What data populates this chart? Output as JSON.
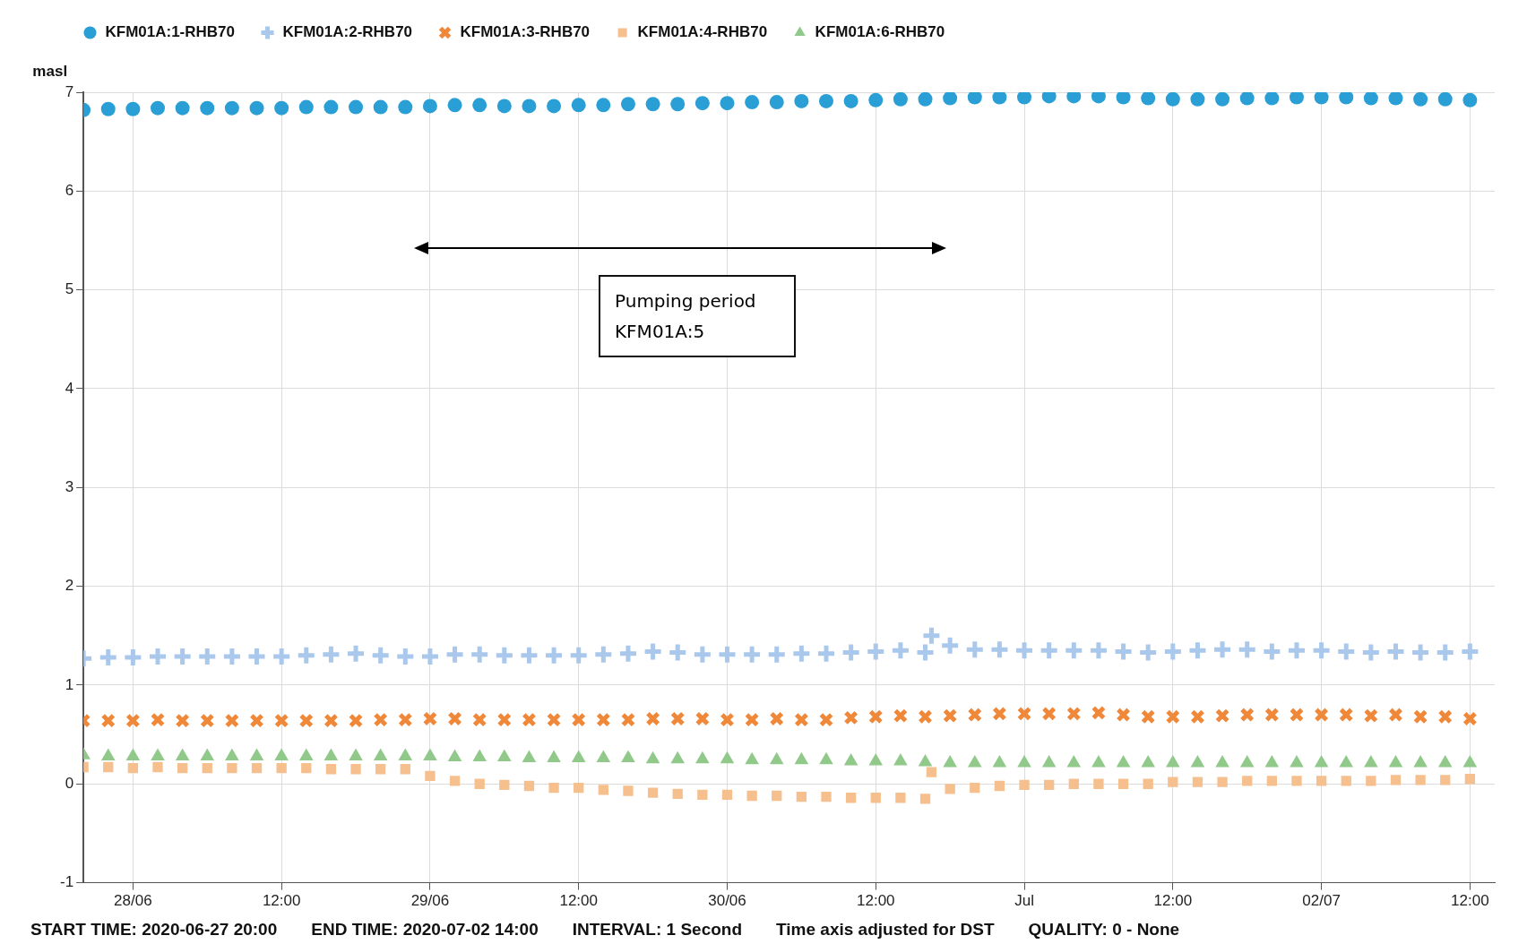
{
  "chart_data": {
    "type": "scatter",
    "ylabel": "masl",
    "x": [
      "2020-06-27T20:00",
      "2020-06-27T22:00",
      "2020-06-28T00:00",
      "2020-06-28T02:00",
      "2020-06-28T04:00",
      "2020-06-28T06:00",
      "2020-06-28T08:00",
      "2020-06-28T10:00",
      "2020-06-28T12:00",
      "2020-06-28T14:00",
      "2020-06-28T16:00",
      "2020-06-28T18:00",
      "2020-06-28T20:00",
      "2020-06-28T22:00",
      "2020-06-29T00:00",
      "2020-06-29T02:00",
      "2020-06-29T04:00",
      "2020-06-29T06:00",
      "2020-06-29T08:00",
      "2020-06-29T10:00",
      "2020-06-29T12:00",
      "2020-06-29T14:00",
      "2020-06-29T16:00",
      "2020-06-29T18:00",
      "2020-06-29T20:00",
      "2020-06-29T22:00",
      "2020-06-30T00:00",
      "2020-06-30T02:00",
      "2020-06-30T04:00",
      "2020-06-30T06:00",
      "2020-06-30T08:00",
      "2020-06-30T10:00",
      "2020-06-30T12:00",
      "2020-06-30T14:00",
      "2020-06-30T16:00",
      "2020-06-30T18:00",
      "2020-06-30T20:00",
      "2020-06-30T22:00",
      "2020-07-01T00:00",
      "2020-07-01T02:00",
      "2020-07-01T04:00",
      "2020-07-01T06:00",
      "2020-07-01T08:00",
      "2020-07-01T10:00",
      "2020-07-01T12:00",
      "2020-07-01T14:00",
      "2020-07-01T16:00",
      "2020-07-01T18:00",
      "2020-07-01T20:00",
      "2020-07-01T22:00",
      "2020-07-02T00:00",
      "2020-07-02T02:00",
      "2020-07-02T04:00",
      "2020-07-02T06:00",
      "2020-07-02T08:00",
      "2020-07-02T10:00",
      "2020-07-02T12:00"
    ],
    "series": [
      {
        "name": "KFM01A:1-RHB70",
        "color": "#2a9fd6",
        "marker": "circle",
        "values": [
          6.82,
          6.83,
          6.83,
          6.84,
          6.84,
          6.84,
          6.84,
          6.84,
          6.84,
          6.85,
          6.85,
          6.85,
          6.85,
          6.85,
          6.86,
          6.87,
          6.87,
          6.86,
          6.86,
          6.86,
          6.87,
          6.87,
          6.88,
          6.88,
          6.88,
          6.89,
          6.89,
          6.9,
          6.9,
          6.91,
          6.91,
          6.91,
          6.92,
          6.93,
          6.93,
          6.94,
          6.95,
          6.95,
          6.95,
          6.96,
          6.96,
          6.96,
          6.95,
          6.94,
          6.93,
          6.93,
          6.93,
          6.94,
          6.94,
          6.95,
          6.95,
          6.95,
          6.94,
          6.94,
          6.93,
          6.93,
          6.92
        ]
      },
      {
        "name": "KFM01A:2-RHB70",
        "color": "#a9c8eb",
        "marker": "plus",
        "x": [
          "2020-06-27T20:00",
          "2020-06-27T22:00",
          "2020-06-28T00:00",
          "2020-06-28T02:00",
          "2020-06-28T04:00",
          "2020-06-28T06:00",
          "2020-06-28T08:00",
          "2020-06-28T10:00",
          "2020-06-28T12:00",
          "2020-06-28T14:00",
          "2020-06-28T16:00",
          "2020-06-28T18:00",
          "2020-06-28T20:00",
          "2020-06-28T22:00",
          "2020-06-29T00:00",
          "2020-06-29T02:00",
          "2020-06-29T04:00",
          "2020-06-29T06:00",
          "2020-06-29T08:00",
          "2020-06-29T10:00",
          "2020-06-29T12:00",
          "2020-06-29T14:00",
          "2020-06-29T16:00",
          "2020-06-29T18:00",
          "2020-06-29T20:00",
          "2020-06-29T22:00",
          "2020-06-30T00:00",
          "2020-06-30T02:00",
          "2020-06-30T04:00",
          "2020-06-30T06:00",
          "2020-06-30T08:00",
          "2020-06-30T10:00",
          "2020-06-30T12:00",
          "2020-06-30T14:00",
          "2020-06-30T16:00",
          "2020-06-30T16:30",
          "2020-06-30T18:00",
          "2020-06-30T20:00",
          "2020-06-30T22:00",
          "2020-07-01T00:00",
          "2020-07-01T02:00",
          "2020-07-01T04:00",
          "2020-07-01T06:00",
          "2020-07-01T08:00",
          "2020-07-01T10:00",
          "2020-07-01T12:00",
          "2020-07-01T14:00",
          "2020-07-01T16:00",
          "2020-07-01T18:00",
          "2020-07-01T20:00",
          "2020-07-01T22:00",
          "2020-07-02T00:00",
          "2020-07-02T02:00",
          "2020-07-02T04:00",
          "2020-07-02T06:00",
          "2020-07-02T08:00",
          "2020-07-02T10:00",
          "2020-07-02T12:00"
        ],
        "values": [
          1.27,
          1.28,
          1.28,
          1.29,
          1.29,
          1.29,
          1.29,
          1.29,
          1.29,
          1.3,
          1.31,
          1.32,
          1.3,
          1.29,
          1.29,
          1.31,
          1.31,
          1.3,
          1.3,
          1.3,
          1.3,
          1.31,
          1.32,
          1.34,
          1.33,
          1.31,
          1.31,
          1.31,
          1.31,
          1.32,
          1.32,
          1.33,
          1.34,
          1.35,
          1.33,
          1.5,
          1.4,
          1.36,
          1.36,
          1.35,
          1.35,
          1.35,
          1.35,
          1.34,
          1.33,
          1.34,
          1.35,
          1.36,
          1.36,
          1.34,
          1.35,
          1.35,
          1.34,
          1.33,
          1.34,
          1.33,
          1.33,
          1.34
        ]
      },
      {
        "name": "KFM01A:3-RHB70",
        "color": "#f0883a",
        "marker": "cross",
        "values": [
          0.64,
          0.64,
          0.64,
          0.65,
          0.64,
          0.64,
          0.64,
          0.64,
          0.64,
          0.64,
          0.64,
          0.64,
          0.65,
          0.65,
          0.66,
          0.66,
          0.65,
          0.65,
          0.65,
          0.65,
          0.65,
          0.65,
          0.65,
          0.66,
          0.66,
          0.66,
          0.65,
          0.65,
          0.66,
          0.65,
          0.65,
          0.67,
          0.68,
          0.69,
          0.68,
          0.69,
          0.7,
          0.71,
          0.71,
          0.71,
          0.71,
          0.72,
          0.7,
          0.68,
          0.68,
          0.68,
          0.69,
          0.7,
          0.7,
          0.7,
          0.7,
          0.7,
          0.69,
          0.7,
          0.68,
          0.68,
          0.66
        ]
      },
      {
        "name": "KFM01A:4-RHB70",
        "color": "#f6bf8e",
        "marker": "square",
        "x": [
          "2020-06-27T20:00",
          "2020-06-27T22:00",
          "2020-06-28T00:00",
          "2020-06-28T02:00",
          "2020-06-28T04:00",
          "2020-06-28T06:00",
          "2020-06-28T08:00",
          "2020-06-28T10:00",
          "2020-06-28T12:00",
          "2020-06-28T14:00",
          "2020-06-28T16:00",
          "2020-06-28T18:00",
          "2020-06-28T20:00",
          "2020-06-28T22:00",
          "2020-06-29T00:00",
          "2020-06-29T02:00",
          "2020-06-29T04:00",
          "2020-06-29T06:00",
          "2020-06-29T08:00",
          "2020-06-29T10:00",
          "2020-06-29T12:00",
          "2020-06-29T14:00",
          "2020-06-29T16:00",
          "2020-06-29T18:00",
          "2020-06-29T20:00",
          "2020-06-29T22:00",
          "2020-06-30T00:00",
          "2020-06-30T02:00",
          "2020-06-30T04:00",
          "2020-06-30T06:00",
          "2020-06-30T08:00",
          "2020-06-30T10:00",
          "2020-06-30T12:00",
          "2020-06-30T14:00",
          "2020-06-30T16:00",
          "2020-06-30T16:30",
          "2020-06-30T18:00",
          "2020-06-30T20:00",
          "2020-06-30T22:00",
          "2020-07-01T00:00",
          "2020-07-01T02:00",
          "2020-07-01T04:00",
          "2020-07-01T06:00",
          "2020-07-01T08:00",
          "2020-07-01T10:00",
          "2020-07-01T12:00",
          "2020-07-01T14:00",
          "2020-07-01T16:00",
          "2020-07-01T18:00",
          "2020-07-01T20:00",
          "2020-07-01T22:00",
          "2020-07-02T00:00",
          "2020-07-02T02:00",
          "2020-07-02T04:00",
          "2020-07-02T06:00",
          "2020-07-02T08:00",
          "2020-07-02T10:00",
          "2020-07-02T12:00"
        ],
        "values": [
          0.17,
          0.17,
          0.16,
          0.17,
          0.16,
          0.16,
          0.16,
          0.16,
          0.16,
          0.16,
          0.15,
          0.15,
          0.15,
          0.15,
          0.08,
          0.03,
          0.0,
          -0.01,
          -0.02,
          -0.04,
          -0.04,
          -0.06,
          -0.07,
          -0.09,
          -0.1,
          -0.11,
          -0.11,
          -0.12,
          -0.12,
          -0.13,
          -0.13,
          -0.14,
          -0.14,
          -0.14,
          -0.15,
          0.12,
          -0.05,
          -0.04,
          -0.02,
          -0.01,
          -0.01,
          0.0,
          0.0,
          0.0,
          0.0,
          0.02,
          0.02,
          0.02,
          0.03,
          0.03,
          0.03,
          0.03,
          0.03,
          0.03,
          0.04,
          0.04,
          0.04,
          0.05
        ]
      },
      {
        "name": "KFM01A:6-RHB70",
        "color": "#90c98a",
        "marker": "triangle",
        "values": [
          0.29,
          0.28,
          0.28,
          0.28,
          0.28,
          0.28,
          0.28,
          0.28,
          0.28,
          0.28,
          0.28,
          0.28,
          0.28,
          0.28,
          0.28,
          0.27,
          0.27,
          0.27,
          0.26,
          0.26,
          0.26,
          0.26,
          0.26,
          0.25,
          0.25,
          0.25,
          0.25,
          0.24,
          0.24,
          0.24,
          0.24,
          0.23,
          0.23,
          0.23,
          0.22,
          0.21,
          0.21,
          0.21,
          0.21,
          0.21,
          0.21,
          0.21,
          0.21,
          0.21,
          0.21,
          0.21,
          0.21,
          0.21,
          0.21,
          0.21,
          0.21,
          0.21,
          0.21,
          0.21,
          0.21,
          0.21,
          0.21
        ]
      }
    ],
    "xlim": [
      "2020-06-27T20:00",
      "2020-07-02T14:00"
    ],
    "xticks": [
      {
        "value": "2020-06-28",
        "label": "28/06"
      },
      {
        "value": "2020-06-28T12:00",
        "label": "12:00"
      },
      {
        "value": "2020-06-29",
        "label": "29/06"
      },
      {
        "value": "2020-06-29T12:00",
        "label": "12:00"
      },
      {
        "value": "2020-06-30",
        "label": "30/06"
      },
      {
        "value": "2020-06-30T12:00",
        "label": "12:00"
      },
      {
        "value": "2020-07-01",
        "label": "Jul"
      },
      {
        "value": "2020-07-01T12:00",
        "label": "12:00"
      },
      {
        "value": "2020-07-02",
        "label": "02/07"
      },
      {
        "value": "2020-07-02T12:00",
        "label": "12:00"
      }
    ],
    "ylim": [
      -1,
      7
    ],
    "yticks": [
      -1,
      0,
      1,
      2,
      3,
      4,
      5,
      6,
      7
    ],
    "grid": true,
    "legend": "top left",
    "annotations": [
      "Pumping period\nKFM01A:5",
      "START TIME: 2020-06-27 20:00",
      "END TIME: 2020-07-02 14:00",
      "INTERVAL: 1 Second",
      "Time axis adjusted for DST",
      "QUALITY: 0 - None"
    ]
  }
}
